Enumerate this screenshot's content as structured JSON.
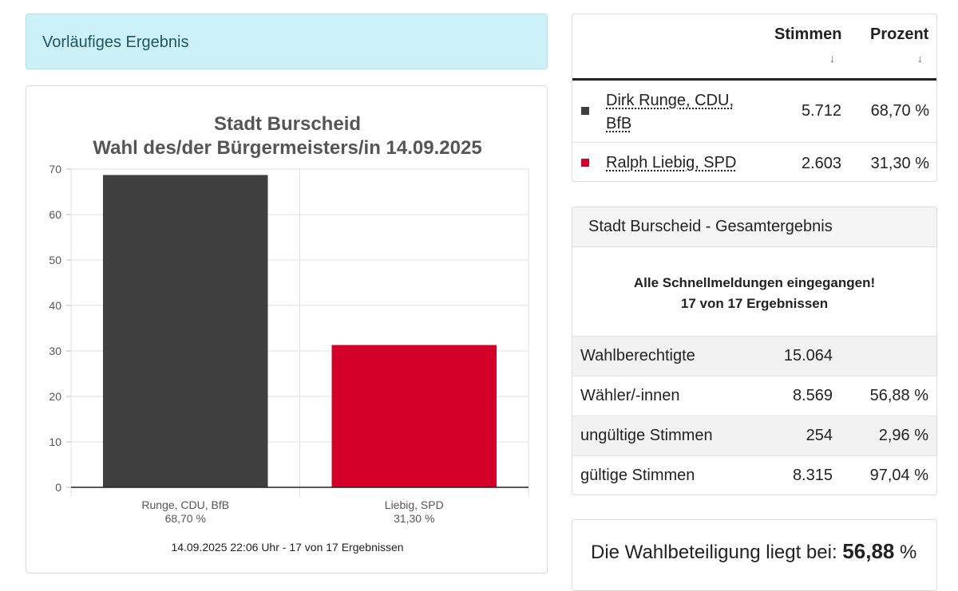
{
  "alert": {
    "text": "Vorläufiges Ergebnis"
  },
  "chart": {
    "title_line1": "Stadt Burscheid",
    "title_line2": "Wahl des/der Bürgermeisters/in 14.09.2025",
    "footnote": "14.09.2025 22:06 Uhr - 17 von 17 Ergebnissen"
  },
  "chart_data": {
    "type": "bar",
    "title": "Stadt Burscheid Wahl des/der Bürgermeisters/in 14.09.2025",
    "categories": [
      "Runge, CDU, BfB",
      "Liebig, SPD"
    ],
    "category_sublabels": [
      "68,70 %",
      "31,30 %"
    ],
    "values": [
      68.7,
      31.3
    ],
    "colors": [
      "#404040",
      "#d5002a"
    ],
    "ylim": [
      0,
      70
    ],
    "yticks": [
      0,
      10,
      20,
      30,
      40,
      50,
      60,
      70
    ],
    "grid": true
  },
  "results": {
    "headers": {
      "votes": "Stimmen",
      "percent": "Prozent",
      "sort_icon": "arrow-down-icon"
    },
    "rows": [
      {
        "name_line1": "Dirk Runge, CDU,",
        "name_line2": "BfB",
        "color": "#404040",
        "votes": "5.712",
        "percent": "68,70 %"
      },
      {
        "name": "Ralph Liebig, SPD",
        "color": "#d5002a",
        "votes": "2.603",
        "percent": "31,30 %"
      }
    ]
  },
  "total": {
    "title": "Stadt Burscheid - Gesamtergebnis",
    "msg_line1": "Alle Schnellmeldungen eingegangen!",
    "msg_line2": "17 von 17 Ergebnissen",
    "stats": [
      {
        "label": "Wahlberechtigte",
        "value": "15.064",
        "percent": ""
      },
      {
        "label": "Wähler/-innen",
        "value": "8.569",
        "percent": "56,88 %"
      },
      {
        "label": "ungültige Stimmen",
        "value": "254",
        "percent": "2,96 %"
      },
      {
        "label": "gültige Stimmen",
        "value": "8.315",
        "percent": "97,04 %"
      }
    ]
  },
  "turnout": {
    "prefix": "Die Wahlbeteiligung liegt bei:",
    "value": "56,88",
    "suffix": "%"
  }
}
